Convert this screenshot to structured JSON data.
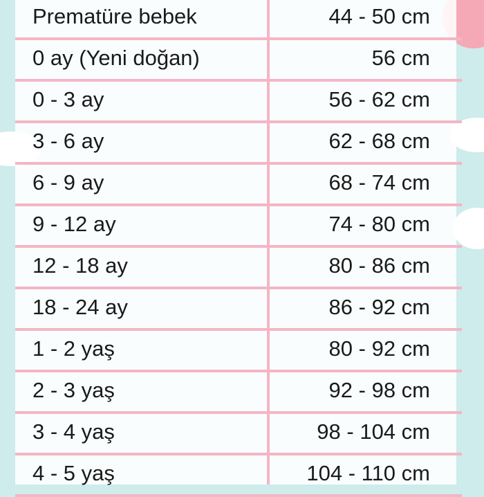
{
  "colors": {
    "grid_line": "#f5b5c4",
    "background": "#cdeceb",
    "text": "#1a1a1a"
  },
  "rows": [
    {
      "age": "Prematüre bebek",
      "length": "44 - 50 cm"
    },
    {
      "age": "0 ay (Yeni doğan)",
      "length": "56 cm"
    },
    {
      "age": "0 - 3 ay",
      "length": "56 - 62 cm"
    },
    {
      "age": "3 - 6 ay",
      "length": "62 - 68 cm"
    },
    {
      "age": "6 - 9 ay",
      "length": "68 - 74 cm"
    },
    {
      "age": "9 - 12 ay",
      "length": "74 - 80 cm"
    },
    {
      "age": "12 - 18 ay",
      "length": "80 - 86 cm"
    },
    {
      "age": "18 - 24 ay",
      "length": "86 - 92 cm"
    },
    {
      "age": "1 - 2 yaş",
      "length": "80 - 92 cm"
    },
    {
      "age": "2 - 3 yaş",
      "length": "92 - 98 cm"
    },
    {
      "age": "3 - 4 yaş",
      "length": "98 - 104 cm"
    },
    {
      "age": "4 - 5 yaş",
      "length": "104 - 110 cm"
    }
  ]
}
